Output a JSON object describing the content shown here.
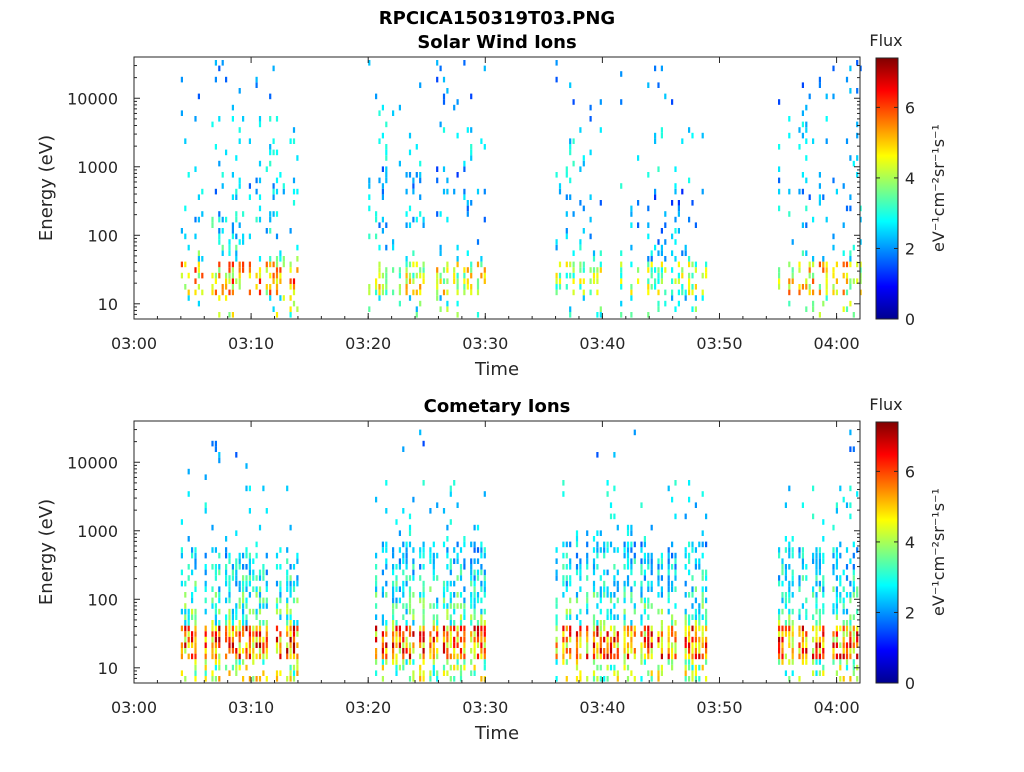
{
  "figure_title": "RPCICA150319T03.PNG",
  "colorbar": {
    "title": "Flux",
    "label": "eV⁻¹cm⁻²sr⁻¹s⁻¹",
    "ticks": [
      "0",
      "2",
      "4",
      "6"
    ],
    "range": [
      0,
      7.4
    ],
    "colormap": "jet"
  },
  "chart_data": [
    {
      "type": "heatmap",
      "title": "Solar Wind Ions",
      "xlabel": "Time",
      "ylabel": "Energy (eV)",
      "x_ticks": [
        "03:00",
        "03:10",
        "03:20",
        "03:30",
        "03:40",
        "03:50",
        "04:00"
      ],
      "y_ticks": [
        "10",
        "100",
        "1000",
        "10000"
      ],
      "y_scale": "log",
      "xlim": [
        "03:00",
        "04:02"
      ],
      "ylim": [
        6,
        40000
      ],
      "bursts": [
        {
          "start": "03:04",
          "end": "03:14",
          "energy_peak_low": 20,
          "energy_peak_high": 600,
          "max_flux": 6.5
        },
        {
          "start": "03:20",
          "end": "03:30",
          "energy_peak_low": 20,
          "energy_peak_high": 1000,
          "max_flux": 5.5
        },
        {
          "start": "03:36",
          "end": "03:49",
          "energy_peak_low": 25,
          "energy_peak_high": 400,
          "max_flux": 5.0
        },
        {
          "start": "03:55",
          "end": "04:02",
          "energy_peak_low": 20,
          "energy_peak_high": 600,
          "max_flux": 6.0
        }
      ]
    },
    {
      "type": "heatmap",
      "title": "Cometary Ions",
      "xlabel": "Time",
      "ylabel": "Energy (eV)",
      "x_ticks": [
        "03:00",
        "03:10",
        "03:20",
        "03:30",
        "03:40",
        "03:50",
        "04:00"
      ],
      "y_ticks": [
        "10",
        "100",
        "1000",
        "10000"
      ],
      "y_scale": "log",
      "xlim": [
        "03:00",
        "04:02"
      ],
      "ylim": [
        6,
        40000
      ],
      "bursts": [
        {
          "start": "03:04",
          "end": "03:14",
          "energy_peak_low": 15,
          "energy_peak_high": 500,
          "max_flux": 7.2
        },
        {
          "start": "03:20",
          "end": "03:30",
          "energy_peak_low": 15,
          "energy_peak_high": 600,
          "max_flux": 7.0
        },
        {
          "start": "03:36",
          "end": "03:49",
          "energy_peak_low": 15,
          "energy_peak_high": 600,
          "max_flux": 7.0
        },
        {
          "start": "03:55",
          "end": "04:02",
          "energy_peak_low": 15,
          "energy_peak_high": 500,
          "max_flux": 7.0
        }
      ]
    }
  ]
}
